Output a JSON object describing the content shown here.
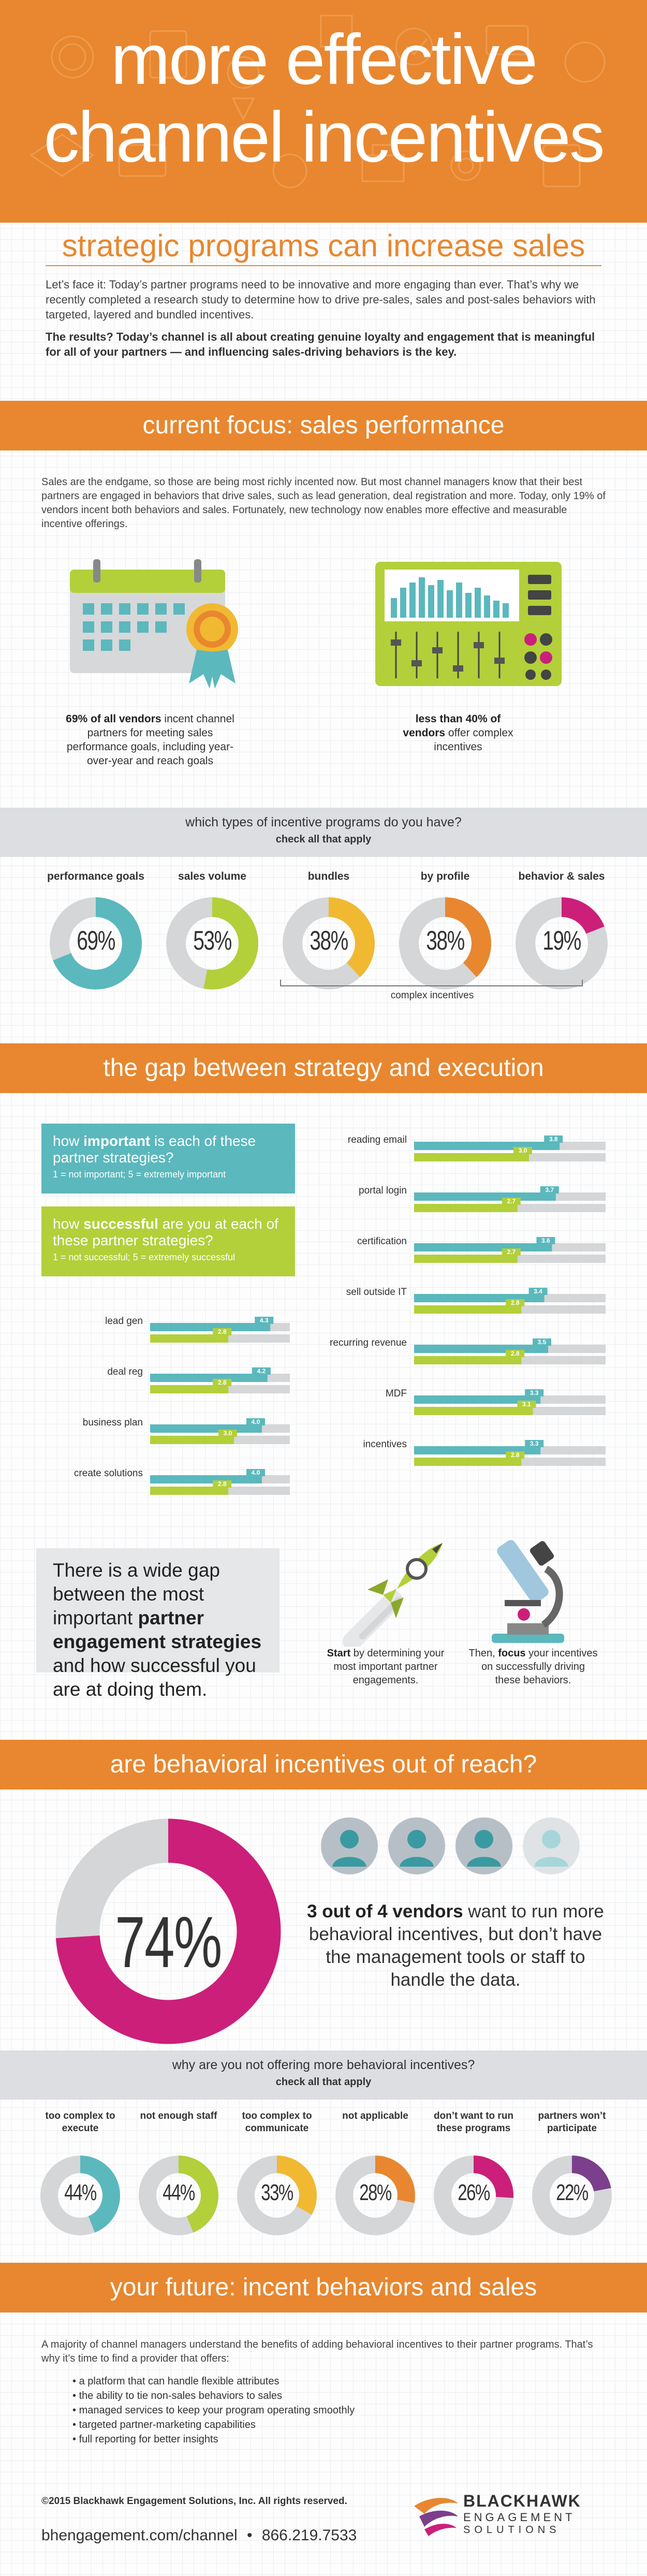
{
  "header": {
    "title_line1": "more effective",
    "title_line2": "channel incentives",
    "subtitle": "strategic programs can increase sales",
    "intro": "Let’s face it: Today’s partner programs need to be innovative and more engaging than ever. That’s why we recently completed a research study to determine how to drive pre-sales, sales and post-sales behaviors with targeted, layered and bundled incentives.",
    "results": "The results? Today’s channel is all about creating genuine loyalty and engagement that is meaningful for all of your partners — and influencing sales-driving behaviors is the key."
  },
  "focus": {
    "title": "current focus: sales performance",
    "body": "Sales are the endgame, so those are being most richly incented now. But most channel managers know that their best partners are engaged in behaviors that drive sales, such as lead generation, deal registration and more. Today, only 19% of vendors incent both behaviors and sales. Fortunately, new technology now enables more effective and measurable incentive offerings.",
    "stat1_bold": "69% of all vendors",
    "stat1_rest": " incent channel partners for meeting sales performance goals, including year-over-year and reach goals",
    "stat2_bold_a": "less than 40% of",
    "stat2_bold_b": "vendors",
    "stat2_rest": " offer complex incentives"
  },
  "incentive_types": {
    "question": "which types of incentive programs do you have?",
    "sub": "check all that apply",
    "bracket_label": "complex incentives",
    "items": [
      {
        "label": "performance goals",
        "value": "69%"
      },
      {
        "label": "sales volume",
        "value": "53%"
      },
      {
        "label": "bundles",
        "value": "38%"
      },
      {
        "label": "by profile",
        "value": "38%"
      },
      {
        "label": "behavior & sales",
        "value": "19%"
      }
    ]
  },
  "gap": {
    "title": "the gap between strategy and execution",
    "imp_pre": "how ",
    "imp_bold": "important",
    "imp_post": " is each of these partner strategies?",
    "imp_note": "1 = not important; 5 = extremely important",
    "succ_pre": "how ",
    "succ_bold": "successful",
    "succ_post": " are you at each of these partner strategies?",
    "succ_note": "1 = not successful; 5 = extremely successful",
    "left": [
      {
        "label": "lead gen",
        "imp": "4.3",
        "succ": "2.8"
      },
      {
        "label": "deal reg",
        "imp": "4.2",
        "succ": "2.8"
      },
      {
        "label": "business plan",
        "imp": "4.0",
        "succ": "3.0"
      },
      {
        "label": "create solutions",
        "imp": "4.0",
        "succ": "2.8"
      }
    ],
    "right": [
      {
        "label": "reading email",
        "imp": "3.8",
        "succ": "3.0"
      },
      {
        "label": "portal login",
        "imp": "3.7",
        "succ": "2.7"
      },
      {
        "label": "certification",
        "imp": "3.6",
        "succ": "2.7"
      },
      {
        "label": "sell outside IT",
        "imp": "3.4",
        "succ": "2.8"
      },
      {
        "label": "recurring revenue",
        "imp": "3.5",
        "succ": "2.8"
      },
      {
        "label": "MDF",
        "imp": "3.3",
        "succ": "3.1"
      },
      {
        "label": "incentives",
        "imp": "3.3",
        "succ": "2.8"
      }
    ],
    "quote_pre": "There is a wide gap between the most important ",
    "quote_bold": "partner engagement strategies",
    "quote_post": " and how successful you are at doing them.",
    "rocket_bold": "Start",
    "rocket_rest": " by determining your most important partner engagements.",
    "scope_pre": "Then, ",
    "scope_bold": "focus",
    "scope_rest": " your incentives on successfully driving these behaviors."
  },
  "behavioral": {
    "title": "are behavioral incentives out of reach?",
    "big_value": "74%",
    "stat_bold": "3 out of 4 vendors",
    "stat_rest": " want to run more behavioral incentives, but don’t have the management tools or staff to handle the data."
  },
  "reasons": {
    "question": "why are you not offering more behavioral incentives?",
    "sub": "check all that apply",
    "items": [
      {
        "label": "too complex to execute",
        "value": "44%"
      },
      {
        "label": "not enough staff",
        "value": "44%"
      },
      {
        "label": "too complex to communicate",
        "value": "33%"
      },
      {
        "label": "not applicable",
        "value": "28%"
      },
      {
        "label": "don’t want to run these programs",
        "value": "26%"
      },
      {
        "label": "partners won’t participate",
        "value": "22%"
      }
    ]
  },
  "future": {
    "title": "your future: incent behaviors and sales",
    "body": "A majority of channel managers understand the benefits of adding behavioral incentives to their partner programs. That’s why it’s time to find a provider that offers:",
    "bullets": [
      "a platform that can handle flexible attributes",
      "the ability to tie non-sales behaviors to sales",
      "managed services to keep your program operating smoothly",
      "targeted partner-marketing capabilities",
      "full reporting for better insights"
    ]
  },
  "footer": {
    "copyright": "©2015 Blackhawk Engagement Solutions, Inc. All rights reserved.",
    "url": "bhengagement.com/channel",
    "sep": "•",
    "phone": "866.219.7533",
    "brand_line1": "BLACKHAWK",
    "brand_line2": "ENGAGEMENT",
    "brand_line3": "SOLUTIONS"
  },
  "colors": {
    "orange": "#e8872f",
    "teal": "#5bb8bd",
    "lime": "#b3cf3a",
    "yellow": "#f1b931",
    "magenta": "#cc1f7a",
    "purple": "#7b3f8c",
    "grey": "#d4d6d8"
  }
}
